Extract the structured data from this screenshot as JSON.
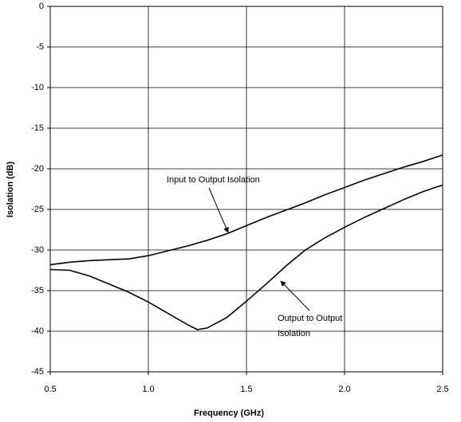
{
  "chart_data": {
    "type": "line",
    "xlabel": "Frequency (GHz)",
    "ylabel": "Isolation (dB)",
    "series": [
      {
        "color": "#000000",
        "x": [
          0.5,
          0.6,
          0.7,
          0.8,
          0.9,
          1.0,
          1.1,
          1.2,
          1.3,
          1.4,
          1.5,
          1.6,
          1.7,
          1.8,
          1.9,
          2.0,
          2.1,
          2.2,
          2.3,
          2.4,
          2.5
        ],
        "values": [
          -31.8,
          -31.5,
          -31.3,
          -31.2,
          -31.1,
          -30.7,
          -30.1,
          -29.5,
          -28.8,
          -28.0,
          -27.0,
          -26.0,
          -25.1,
          -24.2,
          -23.2,
          -22.3,
          -21.4,
          -20.6,
          -19.8,
          -19.1,
          -18.3
        ]
      },
      {
        "color": "#000000",
        "x": [
          0.5,
          0.6,
          0.7,
          0.8,
          0.9,
          1.0,
          1.1,
          1.2,
          1.25,
          1.3,
          1.4,
          1.5,
          1.6,
          1.7,
          1.8,
          1.9,
          2.0,
          2.1,
          2.2,
          2.3,
          2.4,
          2.5
        ],
        "values": [
          -32.4,
          -32.5,
          -33.2,
          -34.2,
          -35.2,
          -36.4,
          -37.8,
          -39.2,
          -39.8,
          -39.6,
          -38.3,
          -36.3,
          -34.2,
          -32.0,
          -30.0,
          -28.5,
          -27.2,
          -26.0,
          -24.9,
          -23.8,
          -22.8,
          -22.0
        ]
      }
    ],
    "annotations": [
      {
        "lines": [
          "Input to Output Isolation"
        ]
      },
      {
        "lines": [
          "Output to Output",
          "Isolation"
        ]
      }
    ],
    "xlim": [
      0.5,
      2.5
    ],
    "xticks": [
      0.5,
      {
        "value": 1,
        "label": "1.0"
      },
      1.5,
      {
        "value": 2,
        "label": "2.0"
      },
      2.5
    ],
    "ylim": [
      -45,
      0
    ],
    "yticks": [
      0,
      -5,
      -10,
      -15,
      -20,
      -25,
      -30,
      -35,
      -40,
      -45
    ],
    "grid": true
  }
}
